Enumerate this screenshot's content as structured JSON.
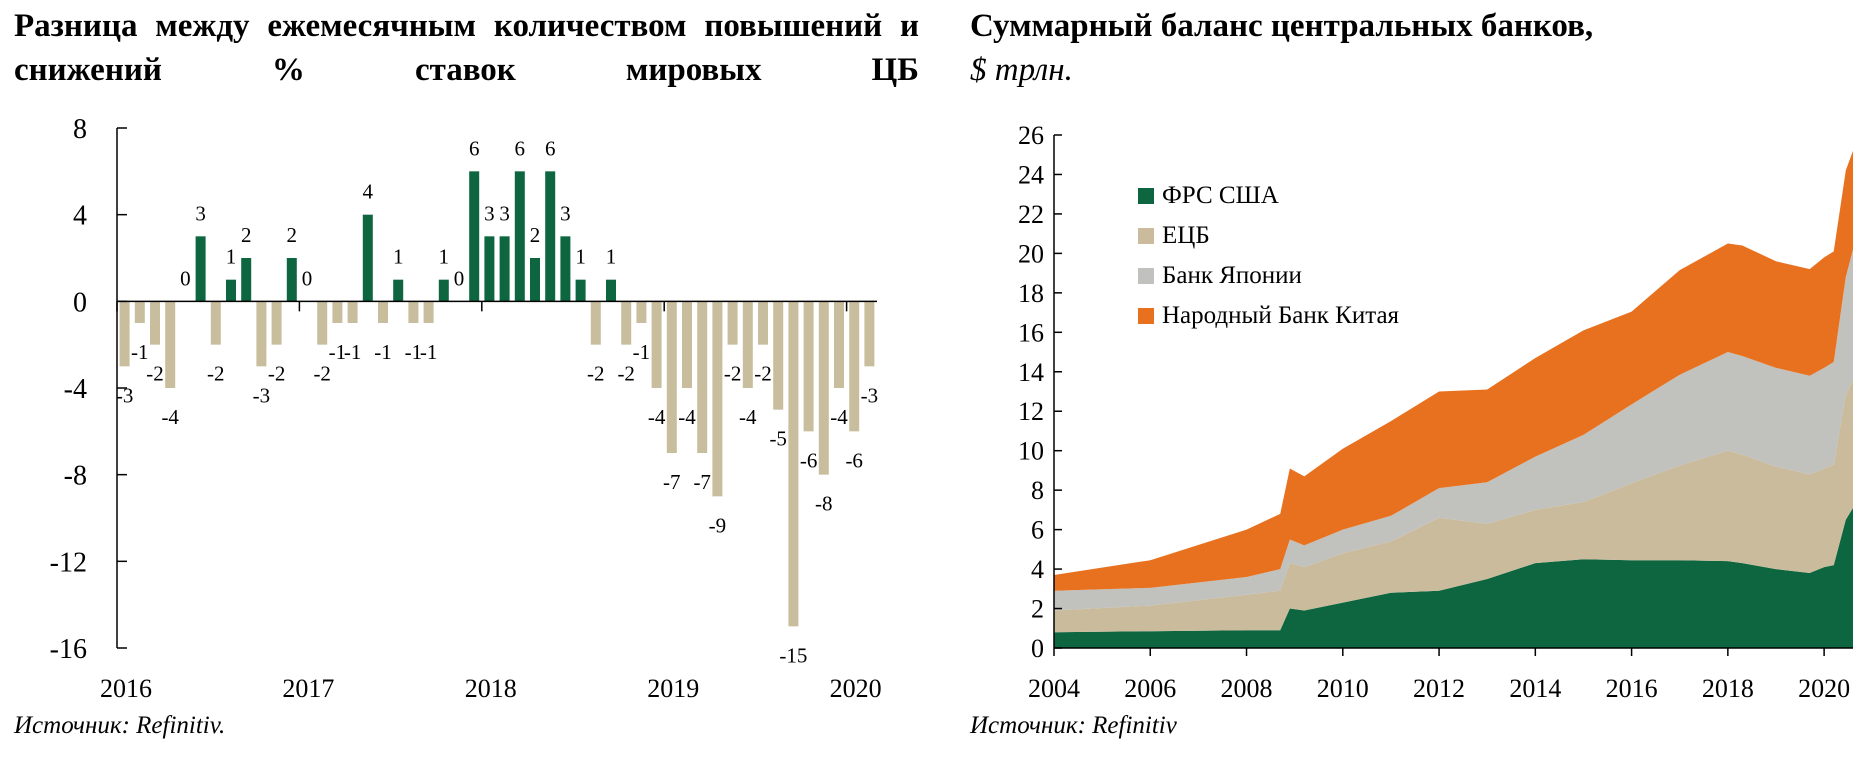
{
  "left_panel": {
    "title": "Разница между ежемесячным количеством повышений и снижений % ставок мировых ЦБ",
    "source": "Источник: Refinitiv."
  },
  "right_panel": {
    "title": "Суммарный баланс центральных банков,",
    "unit": "$ трлн.",
    "source": "Источник: Refinitiv"
  },
  "colors": {
    "positive": "#0d6640",
    "negative": "#c8bd9d",
    "fed": "#0d6640",
    "ecb": "#c9bb9c",
    "boj": "#c1c1bd",
    "pboc": "#e8711f"
  },
  "chart_data": [
    {
      "type": "bar",
      "title": "Разница между ежемесячным количеством повышений и снижений % ставок мировых ЦБ",
      "xlabel": "",
      "ylabel": "",
      "ylim": [
        -16,
        8
      ],
      "yticks": [
        8,
        4,
        0,
        -4,
        -8,
        -12,
        -16
      ],
      "ytick_labels": [
        "8",
        "4",
        "0",
        "-4",
        "-8",
        "-12",
        "-16"
      ],
      "xtick_labels": [
        {
          "label": "2016",
          "index": 0
        },
        {
          "label": "2017",
          "index": 12
        },
        {
          "label": "2018",
          "index": 24
        },
        {
          "label": "2019",
          "index": 36
        },
        {
          "label": "2020",
          "index": 48
        }
      ],
      "months": [
        "2016-01",
        "2016-02",
        "2016-03",
        "2016-04",
        "2016-05",
        "2016-06",
        "2016-07",
        "2016-08",
        "2016-09",
        "2016-10",
        "2016-11",
        "2016-12",
        "2017-01",
        "2017-02",
        "2017-03",
        "2017-04",
        "2017-05",
        "2017-06",
        "2017-07",
        "2017-08",
        "2017-09",
        "2017-10",
        "2017-11",
        "2017-12",
        "2018-01",
        "2018-02",
        "2018-03",
        "2018-04",
        "2018-05",
        "2018-06",
        "2018-07",
        "2018-08",
        "2018-09",
        "2018-10",
        "2018-11",
        "2018-12",
        "2019-01",
        "2019-02",
        "2019-03",
        "2019-04",
        "2019-05",
        "2019-06",
        "2019-07",
        "2019-08",
        "2019-09",
        "2019-10",
        "2019-11",
        "2019-12",
        "2020-01",
        "2020-02"
      ],
      "values": [
        -3,
        -1,
        -2,
        -4,
        0,
        3,
        -2,
        1,
        2,
        -3,
        -2,
        2,
        0,
        -2,
        -1,
        -1,
        4,
        -1,
        1,
        -1,
        -1,
        1,
        0,
        6,
        3,
        3,
        6,
        2,
        6,
        3,
        1,
        -2,
        1,
        -2,
        -1,
        -4,
        -7,
        -4,
        -7,
        -9,
        -2,
        -4,
        -2,
        -5,
        -15,
        -6,
        -8,
        -4,
        -6,
        -3
      ]
    },
    {
      "type": "area",
      "stacked": true,
      "title": "Суммарный баланс центральных банков, $ трлн.",
      "xlabel": "",
      "ylabel": "",
      "xlim": [
        2004,
        2020.6
      ],
      "ylim": [
        0,
        26
      ],
      "xticks": [
        2004,
        2006,
        2008,
        2010,
        2012,
        2014,
        2016,
        2018,
        2020
      ],
      "xtick_labels": [
        "2004",
        "2006",
        "2008",
        "2010",
        "2012",
        "2014",
        "2016",
        "2018",
        "2020"
      ],
      "yticks": [
        0,
        2,
        4,
        6,
        8,
        10,
        12,
        14,
        16,
        18,
        20,
        22,
        24,
        26
      ],
      "ytick_labels": [
        "0",
        "2",
        "4",
        "6",
        "8",
        "10",
        "12",
        "14",
        "16",
        "18",
        "20",
        "22",
        "24",
        "26"
      ],
      "legend_position": "top-left",
      "x": [
        2004,
        2006,
        2008,
        2008.7,
        2008.9,
        2009.2,
        2010,
        2011,
        2012,
        2013,
        2014,
        2015,
        2016,
        2017,
        2018,
        2018.3,
        2019,
        2019.7,
        2020,
        2020.2,
        2020.45,
        2020.6
      ],
      "series": [
        {
          "name": "ФРС США",
          "color_key": "fed",
          "values": [
            0.8,
            0.85,
            0.9,
            0.9,
            2.0,
            1.9,
            2.3,
            2.8,
            2.9,
            3.5,
            4.3,
            4.5,
            4.45,
            4.45,
            4.4,
            4.3,
            4.0,
            3.8,
            4.1,
            4.2,
            6.5,
            7.1
          ]
        },
        {
          "name": "ЕЦБ",
          "color_key": "ecb",
          "values": [
            1.1,
            1.3,
            1.8,
            2.0,
            2.3,
            2.2,
            2.5,
            2.6,
            3.7,
            2.8,
            2.7,
            2.9,
            3.9,
            4.8,
            5.6,
            5.5,
            5.2,
            5.0,
            5.0,
            5.1,
            6.3,
            6.5
          ]
        },
        {
          "name": "Банк Японии",
          "color_key": "boj",
          "values": [
            1.0,
            0.9,
            0.9,
            1.1,
            1.2,
            1.1,
            1.2,
            1.3,
            1.5,
            2.1,
            2.7,
            3.4,
            4.0,
            4.6,
            5.0,
            5.0,
            5.0,
            5.0,
            5.1,
            5.2,
            6.0,
            6.6
          ]
        },
        {
          "name": "Народный Банк Китая",
          "color_key": "pboc",
          "values": [
            0.8,
            1.4,
            2.4,
            2.8,
            3.6,
            3.5,
            4.1,
            4.8,
            4.9,
            4.7,
            5.0,
            5.3,
            4.7,
            5.3,
            5.5,
            5.6,
            5.4,
            5.4,
            5.6,
            5.6,
            5.4,
            5.0
          ]
        }
      ]
    }
  ]
}
